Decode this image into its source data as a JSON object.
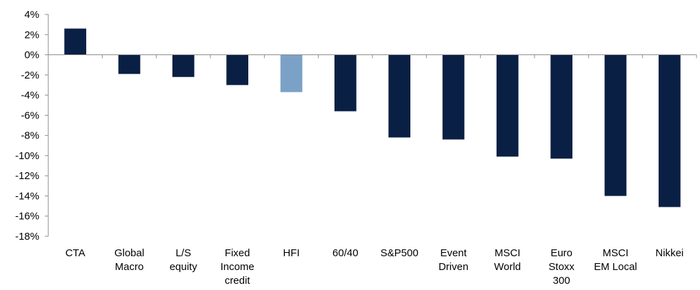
{
  "chart_data": {
    "type": "bar",
    "title": "",
    "xlabel": "",
    "ylabel": "",
    "ylim": [
      -18,
      4
    ],
    "yticks": [
      4,
      2,
      0,
      -2,
      -4,
      -6,
      -8,
      -10,
      -12,
      -14,
      -16,
      -18
    ],
    "ytick_labels": [
      "4%",
      "2%",
      "0%",
      "-2%",
      "-4%",
      "-6%",
      "-8%",
      "-10%",
      "-12%",
      "-14%",
      "-16%",
      "-18%"
    ],
    "grid": false,
    "legend": "none",
    "categories": [
      [
        "CTA"
      ],
      [
        "Global",
        "Macro"
      ],
      [
        "L/S",
        "equity"
      ],
      [
        "Fixed",
        "Income",
        "credit"
      ],
      [
        "HFI"
      ],
      [
        "60/40"
      ],
      [
        "S&P500"
      ],
      [
        "Event",
        "Driven"
      ],
      [
        "MSCI",
        "World"
      ],
      [
        "Euro",
        "Stoxx",
        "300"
      ],
      [
        "MSCI",
        "EM Local"
      ],
      [
        "Nikkei"
      ]
    ],
    "values": [
      2.6,
      -1.9,
      -2.2,
      -3.0,
      -3.7,
      -5.6,
      -8.2,
      -8.4,
      -10.1,
      -10.3,
      -14.0,
      -15.1
    ],
    "colors": {
      "default": "#0a1f44",
      "highlight": "#7ba1c7",
      "axis": "#8c8c8c"
    },
    "highlight_index": 4
  }
}
